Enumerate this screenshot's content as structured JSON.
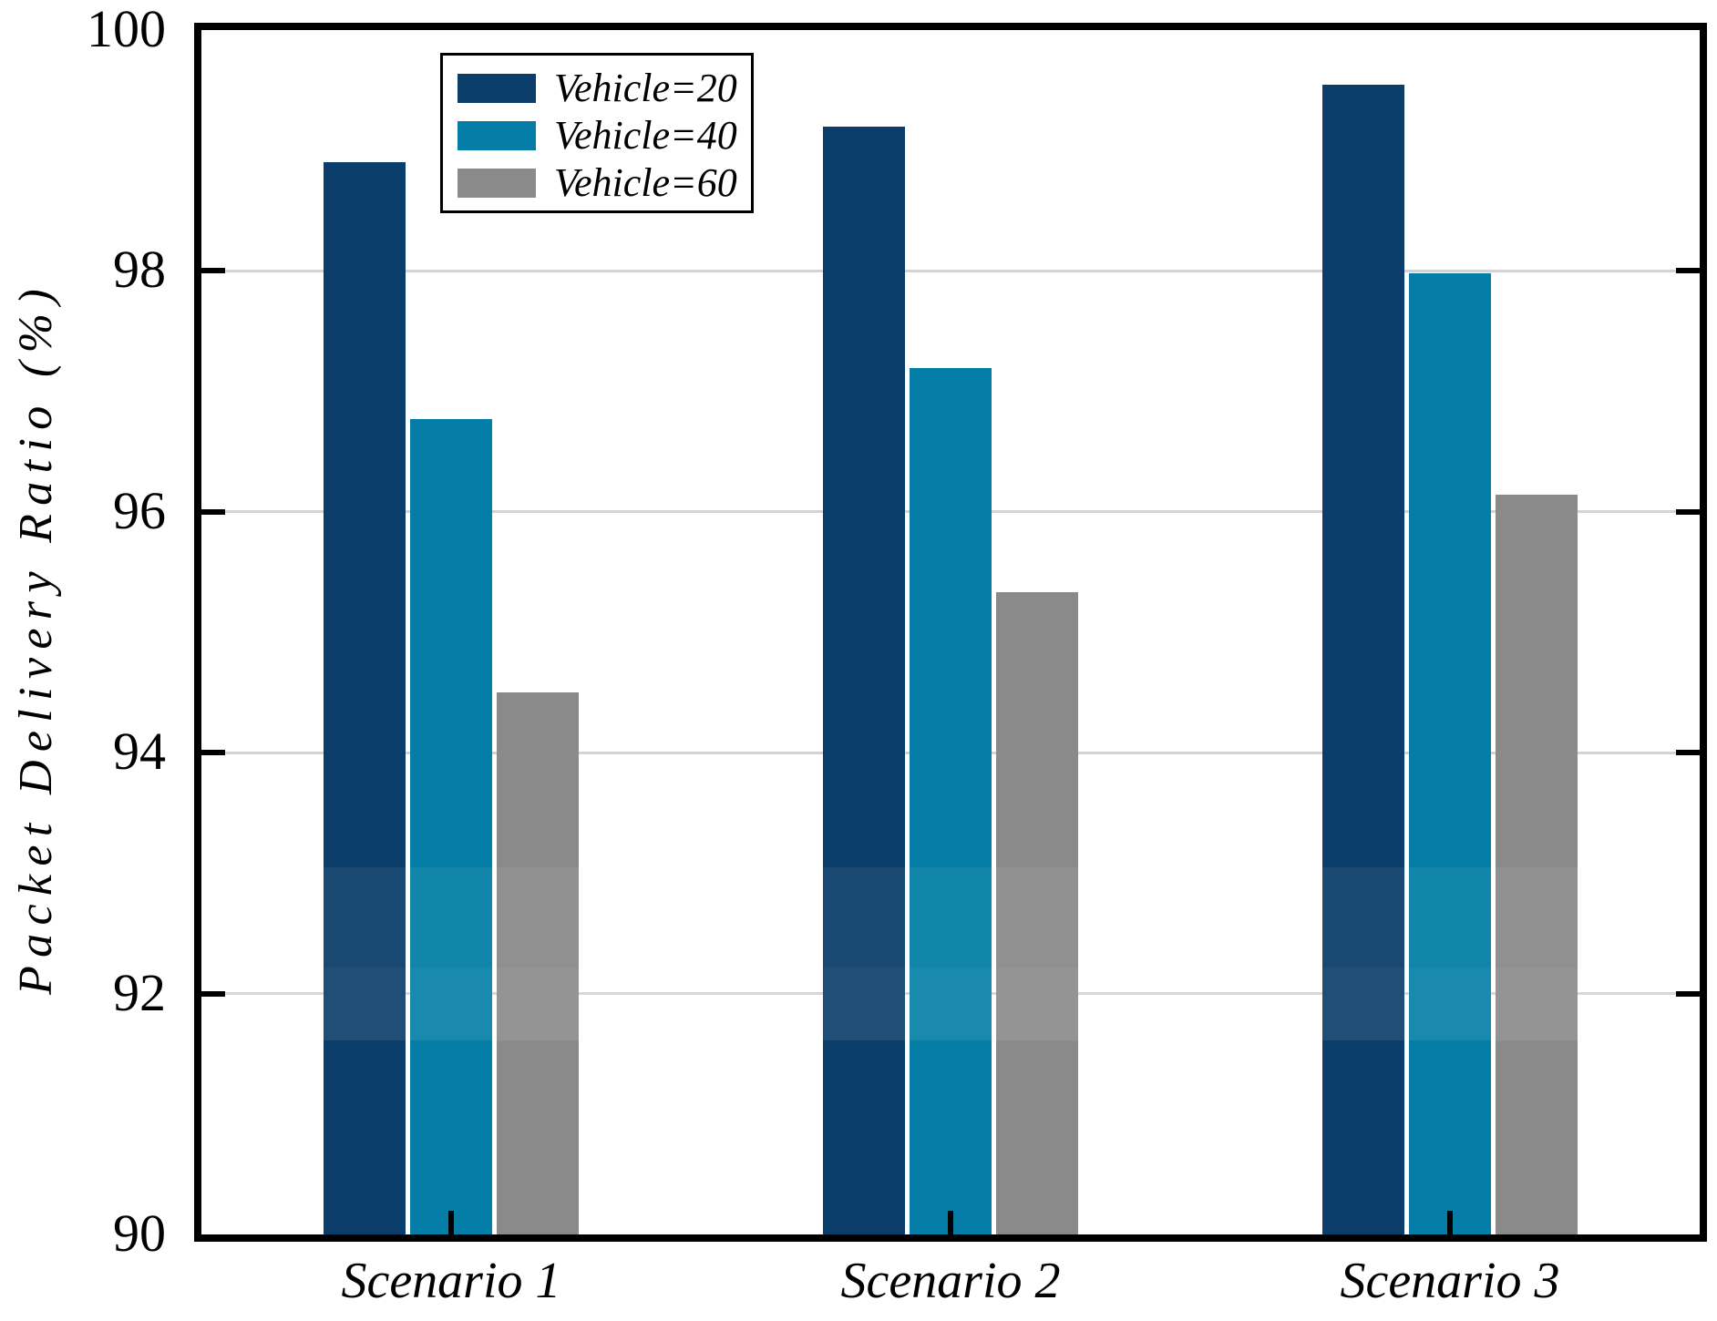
{
  "figure": {
    "background": "#ffffff",
    "frame_color": "#000000",
    "gridline_color": "#d3d3d3"
  },
  "chart_data": {
    "type": "bar",
    "title": "",
    "xlabel": "",
    "ylabel": "Packet Delivery Ratio (%)",
    "categories": [
      "Scenario 1",
      "Scenario 2",
      "Scenario 3"
    ],
    "series": [
      {
        "name": "Vehicle=20",
        "color": "#0b3d6a",
        "values": [
          98.9,
          99.2,
          99.55
        ]
      },
      {
        "name": "Vehicle=40",
        "color": "#047ea6",
        "values": [
          96.77,
          97.19,
          97.98
        ]
      },
      {
        "name": "Vehicle=60",
        "color": "#8a8a8a",
        "values": [
          94.5,
          95.33,
          96.14
        ]
      }
    ],
    "ylim": [
      90,
      100
    ],
    "yticks": [
      90,
      92,
      94,
      96,
      98,
      100
    ],
    "grid": "horizontal-light-at-interior-ticks",
    "tick_direction": "in",
    "legend_position": "upper-left-inside",
    "legend_entries": [
      "Vehicle=20",
      "Vehicle=40",
      "Vehicle=60"
    ]
  }
}
